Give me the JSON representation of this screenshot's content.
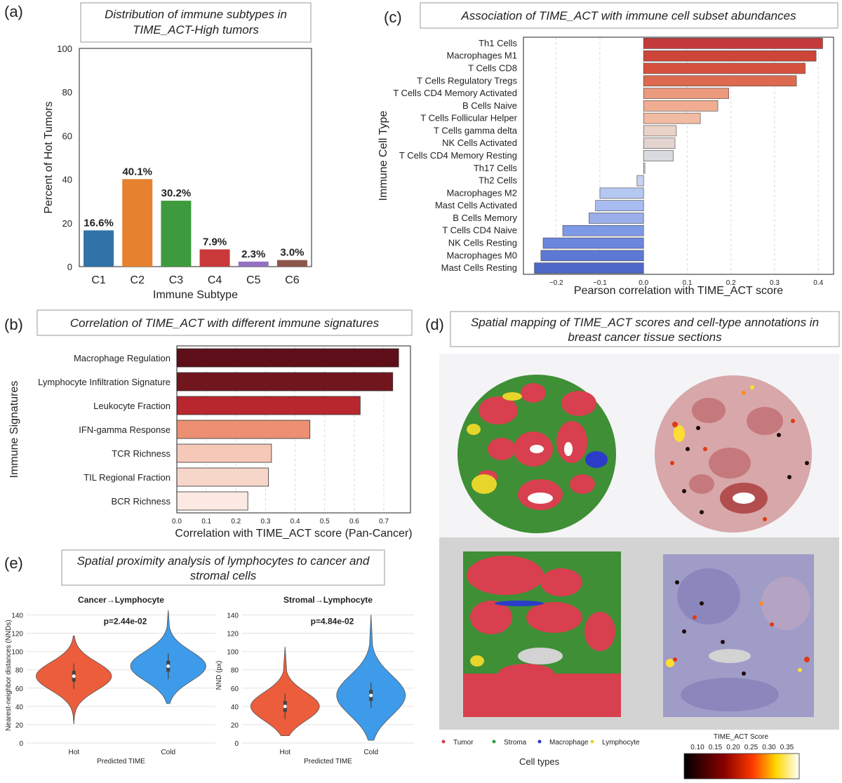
{
  "panels": {
    "a": {
      "label": "(a)",
      "title_lines": [
        "Distribution of immune subtypes in",
        "TIME_ACT-High tumors"
      ]
    },
    "b": {
      "label": "(b)",
      "title": "Correlation of TIME_ACT with different immune signatures"
    },
    "c": {
      "label": "(c)",
      "title": "Association of TIME_ACT with immune cell subset abundances"
    },
    "d": {
      "label": "(d)",
      "title_lines": [
        "Spatial mapping of TIME_ACT scores and cell-type annotations in",
        "breast cancer tissue sections"
      ]
    },
    "e": {
      "label": "(e)",
      "title_lines": [
        "Spatial proximity analysis of lymphocytes to cancer and",
        "stromal cells"
      ]
    }
  },
  "chart_data": [
    {
      "id": "a",
      "type": "bar",
      "categories": [
        "C1",
        "C2",
        "C3",
        "C4",
        "C5",
        "C6"
      ],
      "values": [
        16.6,
        40.1,
        30.2,
        7.9,
        2.3,
        3.0
      ],
      "value_labels": [
        "16.6%",
        "40.1%",
        "30.2%",
        "7.9%",
        "2.3%",
        "3.0%"
      ],
      "colors": [
        "#2f73a8",
        "#e6812f",
        "#3d9a3d",
        "#c9393a",
        "#9370c0",
        "#8c564b"
      ],
      "xlabel": "Immune Subtype",
      "ylabel": "Percent of Hot Tumors",
      "ylim": [
        0,
        100
      ],
      "yticks": [
        0,
        20,
        40,
        60,
        80,
        100
      ],
      "grid": false
    },
    {
      "id": "b",
      "type": "bar",
      "orientation": "horizontal",
      "categories": [
        "Macrophage Regulation",
        "Lymphocyte Infiltration Signature",
        "Leukocyte Fraction",
        "IFN-gamma Response",
        "TCR Richness",
        "TIL Regional Fraction",
        "BCR Richness"
      ],
      "values": [
        0.75,
        0.73,
        0.62,
        0.45,
        0.32,
        0.31,
        0.24
      ],
      "colors": [
        "#5e0f19",
        "#72161e",
        "#b8272d",
        "#ec8f73",
        "#f5c8b8",
        "#f7d6ca",
        "#fde9e3"
      ],
      "xlabel": "Correlation with TIME_ACT score (Pan-Cancer)",
      "ylabel": "Immune Signatures",
      "xlim": [
        0,
        0.79
      ],
      "xticks": [
        "0.0",
        "0.1",
        "0.2",
        "0.3",
        "0.4",
        "0.5",
        "0.6",
        "0.7"
      ],
      "grid": true
    },
    {
      "id": "c",
      "type": "bar",
      "orientation": "horizontal",
      "categories": [
        "Th1 Cells",
        "Macrophages M1",
        "T Cells CD8",
        "T Cells Regulatory Tregs",
        "T Cells CD4 Memory Activated",
        "B Cells Naive",
        "T Cells Follicular Helper",
        "T Cells gamma delta",
        "NK Cells Activated",
        "T Cells CD4 Memory Resting",
        "Th17 Cells",
        "Th2 Cells",
        "Macrophages M2",
        "Mast Cells Activated",
        "B Cells Memory",
        "T Cells CD4 Naive",
        "NK Cells Resting",
        "Macrophages M0",
        "Mast Cells Resting"
      ],
      "values": [
        0.41,
        0.395,
        0.37,
        0.35,
        0.195,
        0.17,
        0.13,
        0.075,
        0.072,
        0.068,
        0.003,
        -0.015,
        -0.1,
        -0.11,
        -0.125,
        -0.185,
        -0.23,
        -0.235,
        -0.25
      ],
      "colors": [
        "#c43a3a",
        "#cd4539",
        "#d6523f",
        "#dd6a50",
        "#eb9a7d",
        "#f0ad91",
        "#f2bba3",
        "#ead2c8",
        "#e3d4cf",
        "#d9dadf",
        "#dadcea",
        "#c7d2f0",
        "#b5c8f2",
        "#a9bcf2",
        "#9aaee9",
        "#7e99e6",
        "#6b86de",
        "#5c79d6",
        "#4e69c8"
      ],
      "xlabel": "Pearson correlation with TIME_ACT score",
      "ylabel": "Immune Cell Type",
      "xlim": [
        -0.275,
        0.435
      ],
      "xticks": [
        "−0.2",
        "−0.1",
        "0.0",
        "0.1",
        "0.2",
        "0.3",
        "0.4"
      ],
      "grid": true
    },
    {
      "id": "e1",
      "type": "violin",
      "title": "Cancer→Lymphocyte",
      "annotation": "p=2.44e-02",
      "categories": [
        "Hot",
        "Cold"
      ],
      "colors": [
        "#ec5d3c",
        "#3d9be9"
      ],
      "medians": [
        73,
        84
      ],
      "ranges": [
        [
          21,
          117
        ],
        [
          43,
          145
        ]
      ],
      "xlabel": "Predicted TIME",
      "ylabel": "Nearest-neighbor distances (NNDs)",
      "ylim": [
        0,
        148
      ],
      "yticks": [
        0,
        20,
        40,
        60,
        80,
        100,
        120,
        140
      ]
    },
    {
      "id": "e2",
      "type": "violin",
      "title": "Stromal→Lymphocyte",
      "annotation": "p=4.84e-02",
      "categories": [
        "Hot",
        "Cold"
      ],
      "colors": [
        "#ec5d3c",
        "#3d9be9"
      ],
      "medians": [
        40,
        52
      ],
      "ranges": [
        [
          8,
          105
        ],
        [
          3,
          140
        ]
      ],
      "xlabel": "Predicted TIME",
      "ylabel": "NND (px)",
      "ylim": [
        0,
        148
      ],
      "yticks": [
        0,
        20,
        40,
        60,
        80,
        100,
        120,
        140
      ]
    }
  ],
  "legend_d": {
    "items": [
      {
        "label": "Tumor",
        "color": "#d9404d"
      },
      {
        "label": "Stroma",
        "color": "#3a9a3a"
      },
      {
        "label": "Macrophage",
        "color": "#2b3cc8"
      },
      {
        "label": "Lymphocyte",
        "color": "#e6d52a"
      }
    ],
    "caption": "Cell types",
    "colorbar_title": "TIME_ACT Score",
    "colorbar_ticks": [
      "0.10",
      "0.15",
      "0.20",
      "0.25",
      "0.30",
      "0.35"
    ]
  }
}
